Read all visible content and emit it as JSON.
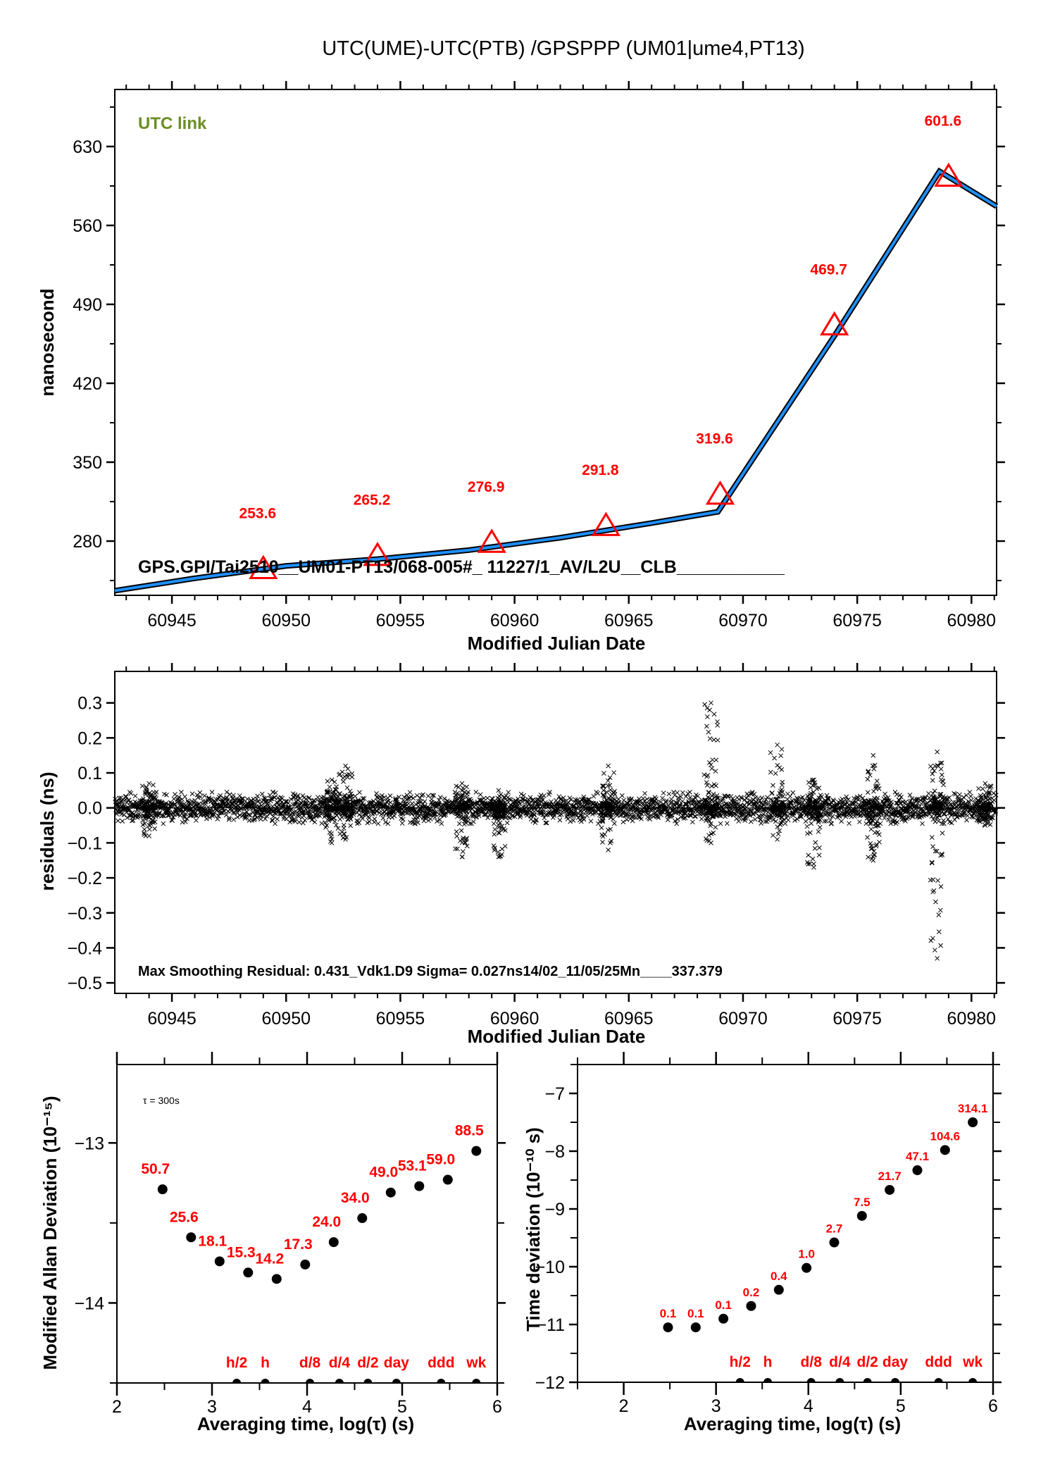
{
  "title": "UTC(UME)-UTC(PTB)  /GPSPPP  (UM01|ume4,PT13)",
  "colors": {
    "link_line": "#1e90ff",
    "link_outline": "#000000",
    "marker": "#ff0000",
    "label_red": "#ff0000",
    "utc_link_green": "#6b8e23"
  },
  "chart_data": [
    {
      "id": "link",
      "type": "line",
      "title": "",
      "annotation": "UTC link",
      "footer_text": "GPS.GPI/Tai2510__UM01-PT13/068-005#_  11227/1_AV/L2U__CLB___________",
      "xlabel": "Modified Julian Date",
      "ylabel": "nanosecond",
      "xlim": [
        60942.5,
        60981.1
      ],
      "ylim": [
        231.9,
        680.6
      ],
      "xticks": [
        60945,
        60950,
        60955,
        60960,
        60965,
        60970,
        60975,
        60980
      ],
      "xtick_labels": [
        "60945",
        "60950",
        "60955",
        "60960",
        "60965",
        "60970",
        "60975",
        "60980"
      ],
      "yticks": [
        280,
        350,
        420,
        490,
        560,
        630
      ],
      "ytick_labels": [
        "280",
        "350",
        "420",
        "490",
        "560",
        "630"
      ],
      "grid": false,
      "series": [
        {
          "name": "link",
          "x": [
            60942.5,
            60946,
            60950,
            60954,
            60958,
            60962,
            60966,
            60968.9,
            60974,
            60978.6,
            60981.1
          ],
          "y": [
            236,
            247,
            258,
            264,
            272,
            283,
            296,
            306,
            462,
            608,
            577
          ]
        }
      ],
      "markers": {
        "x": [
          60949,
          60954,
          60959,
          60964,
          60969,
          60974,
          60979
        ],
        "values": [
          253.6,
          265.2,
          276.9,
          291.8,
          319.6,
          469.7,
          601.6
        ],
        "labels": [
          "253.6",
          "265.2",
          "276.9",
          "291.8",
          "319.6",
          "469.7",
          "601.6"
        ]
      }
    },
    {
      "id": "residuals",
      "type": "scatter",
      "xlabel": "Modified Julian Date",
      "ylabel": "residuals (ns)",
      "xlim": [
        60942.5,
        60981.1
      ],
      "ylim": [
        -0.53,
        0.39
      ],
      "xticks": [
        60945,
        60950,
        60955,
        60960,
        60965,
        60970,
        60975,
        60980
      ],
      "xtick_labels": [
        "60945",
        "60950",
        "60955",
        "60960",
        "60965",
        "60970",
        "60975",
        "60980"
      ],
      "yticks": [
        0.3,
        0.2,
        0.1,
        0.0,
        -0.1,
        -0.2,
        -0.3,
        -0.4,
        -0.5
      ],
      "ytick_labels": [
        "0.3",
        "0.2",
        "0.1",
        "0.0",
        "−0.1",
        "−0.2",
        "−0.3",
        "−0.4",
        "−0.5"
      ],
      "grid": false,
      "footer_text": "Max Smoothing Residual: 0.431_Vdk1.D9  Sigma= 0.027ns14/02_11/05/25Mn____337.379",
      "noise_sigma": 0.027,
      "bursts": [
        {
          "x": 60944,
          "max": 0.07,
          "min": -0.08
        },
        {
          "x": 60952,
          "max": 0.08,
          "min": -0.1
        },
        {
          "x": 60952.6,
          "max": 0.12,
          "min": -0.09
        },
        {
          "x": 60957.7,
          "max": 0.07,
          "min": -0.14
        },
        {
          "x": 60959.3,
          "max": 0.05,
          "min": -0.14
        },
        {
          "x": 60964.1,
          "max": 0.12,
          "min": -0.12
        },
        {
          "x": 60968.6,
          "max": 0.3,
          "min": -0.1
        },
        {
          "x": 60971.5,
          "max": 0.18,
          "min": -0.09
        },
        {
          "x": 60973.1,
          "max": 0.08,
          "min": -0.17
        },
        {
          "x": 60975.7,
          "max": 0.15,
          "min": -0.15
        },
        {
          "x": 60978.5,
          "max": 0.16,
          "min": -0.43
        },
        {
          "x": 60980.6,
          "max": 0.07,
          "min": -0.05
        }
      ]
    },
    {
      "id": "mdev",
      "type": "scatter",
      "annotation": "τ = 300s",
      "xlabel": "Averaging time, log(τ) (s)",
      "ylabel": "Modified Allan Deviation (10⁻¹⁵)",
      "xlim": [
        2,
        6
      ],
      "ylim": [
        -14.5,
        -12.51
      ],
      "xticks": [
        2,
        3,
        4,
        5,
        6
      ],
      "xtick_labels": [
        "2",
        "3",
        "4",
        "5",
        "6"
      ],
      "yticks": [
        -13,
        -14
      ],
      "ytick_labels": [
        "−13",
        "−14"
      ],
      "grid": false,
      "x": [
        2.48,
        2.78,
        3.08,
        3.38,
        3.68,
        3.98,
        4.28,
        4.58,
        4.88,
        5.18,
        5.48,
        5.78
      ],
      "y": [
        -13.29,
        -13.59,
        -13.74,
        -13.81,
        -13.85,
        -13.76,
        -13.62,
        -13.47,
        -13.31,
        -13.27,
        -13.23,
        -13.05
      ],
      "labels": [
        "50.7",
        "25.6",
        "18.1",
        "15.3",
        "14.2",
        "17.3",
        "24.0",
        "34.0",
        "49.0",
        "53.1",
        "59.0",
        "88.5"
      ],
      "tau_markers": {
        "labels": [
          "h/2",
          "h",
          "d/8",
          "d/4",
          "d/2",
          "day",
          "ddd",
          "wk"
        ],
        "x": [
          3.26,
          3.56,
          4.03,
          4.34,
          4.64,
          4.94,
          5.41,
          5.78
        ]
      }
    },
    {
      "id": "tdev",
      "type": "scatter",
      "xlabel": "Averaging time, log(τ) (s)",
      "ylabel": "Time deviation (10⁻¹⁰ s)",
      "xlim": [
        1.5,
        6
      ],
      "ylim": [
        -12,
        -6.5
      ],
      "xticks": [
        2,
        3,
        4,
        5,
        6
      ],
      "xtick_labels": [
        "2",
        "3",
        "4",
        "5",
        "6"
      ],
      "yticks": [
        -7,
        -8,
        -9,
        -10,
        -11,
        -12
      ],
      "ytick_labels": [
        "−7",
        "−8",
        "−9",
        "−10",
        "−11",
        "−12"
      ],
      "grid": false,
      "x": [
        2.48,
        2.78,
        3.08,
        3.38,
        3.68,
        3.98,
        4.28,
        4.58,
        4.88,
        5.18,
        5.48,
        5.78
      ],
      "y": [
        -11.05,
        -11.05,
        -10.9,
        -10.68,
        -10.4,
        -10.02,
        -9.58,
        -9.12,
        -8.67,
        -8.33,
        -7.98,
        -7.5
      ],
      "labels": [
        "0.1",
        "0.1",
        "0.1",
        "0.2",
        "0.4",
        "1.0",
        "2.7",
        "7.5",
        "21.7",
        "47.1",
        "104.6",
        "314.1"
      ],
      "tau_markers": {
        "labels": [
          "h/2",
          "h",
          "d/8",
          "d/4",
          "d/2",
          "day",
          "ddd",
          "wk"
        ],
        "x": [
          3.26,
          3.56,
          4.03,
          4.34,
          4.64,
          4.94,
          5.41,
          5.78
        ]
      }
    }
  ]
}
